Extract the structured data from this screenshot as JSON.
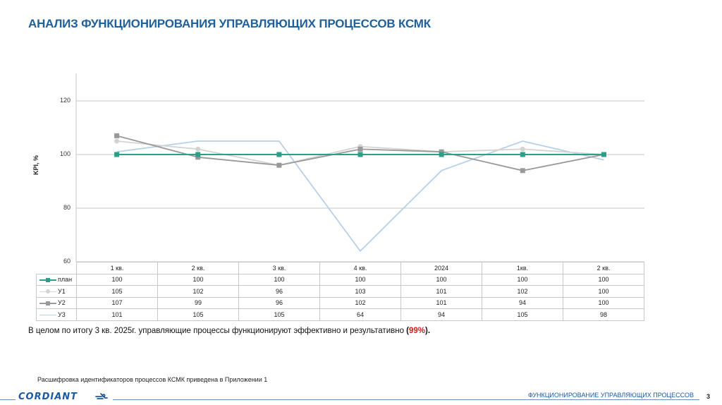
{
  "header": {
    "title": "АНАЛИЗ ФУНКЦИОНИРОВАНИЯ УПРАВЛЯЮЩИХ ПРОЦЕССОВ КСМК"
  },
  "chart_data": {
    "type": "line",
    "title": "",
    "xlabel": "",
    "ylabel": "KPI, %",
    "ylim": [
      60,
      125
    ],
    "yticks": [
      60,
      80,
      100,
      120
    ],
    "grid": true,
    "legend_position": "data-table",
    "categories": [
      "1 кв.",
      "2 кв.",
      "3 кв.",
      "4 кв.",
      "2024",
      "1кв.",
      "2 кв."
    ],
    "series": [
      {
        "name": "план",
        "values": [
          100,
          100,
          100,
          100,
          100,
          100,
          100
        ],
        "color": "#2e9e88",
        "marker": "square"
      },
      {
        "name": "У1",
        "values": [
          105,
          102,
          96,
          103,
          101,
          102,
          100
        ],
        "color": "#d3d3d3",
        "marker": "circle"
      },
      {
        "name": "У2",
        "values": [
          107,
          99,
          96,
          102,
          101,
          94,
          100
        ],
        "color": "#999999",
        "marker": "square"
      },
      {
        "name": "У3",
        "values": [
          101,
          105,
          105,
          64,
          94,
          105,
          98
        ],
        "color": "#b8d0e6",
        "marker": "none"
      }
    ]
  },
  "summary": {
    "text_before": "В целом по итогу 3  кв. 2025г. управляющие процессы функционируют эффективно и результативно ",
    "open_paren": "(",
    "percent": "99%",
    "close_paren": ").",
    "percent_color": "#e0191b"
  },
  "note": "Расшифровка идентификаторов процессов КСМК приведена в Приложении 1",
  "footer": {
    "logo": "CORDIANT",
    "section_title": "ФУНКЦИОНИРОВАНИЕ УПРАВЛЯЮЩИХ ПРОЦЕССОВ",
    "page_number": "3"
  }
}
